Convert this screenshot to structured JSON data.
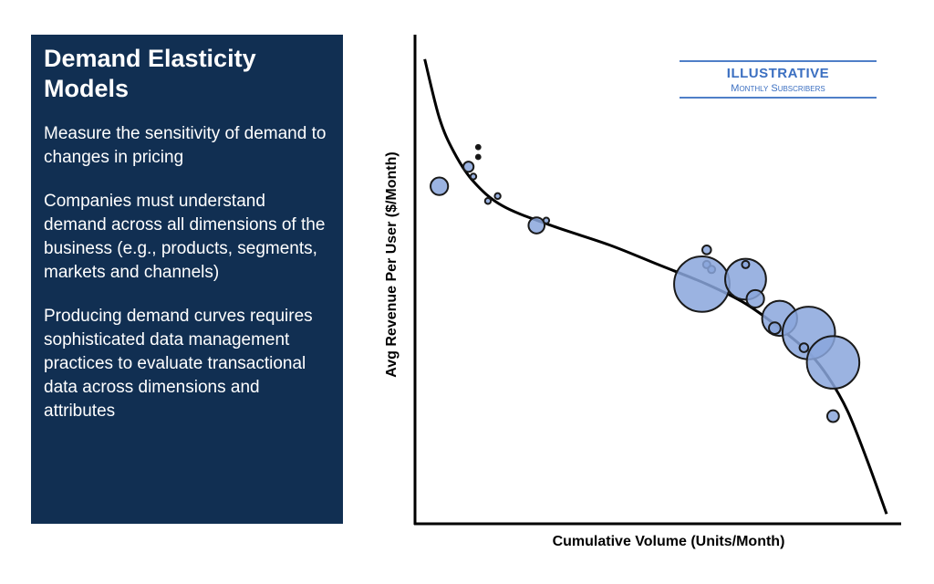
{
  "panel": {
    "title": "Demand Elasticity Models",
    "paragraphs": [
      "Measure the sensitivity of demand to changes in pricing",
      "Companies must understand demand across all dimensions of the business (e.g., products, segments, markets and channels)",
      "Producing demand curves requires sophisticated data management practices to evaluate transactional data across dimensions and attributes"
    ]
  },
  "badge": {
    "title": "ILLUSTRATIVE",
    "subtitle": "Monthly Subscribers"
  },
  "colors": {
    "panel_bg": "#112f52",
    "bubble_fill": "#8aa6dc",
    "bubble_stroke": "#1a1a1a",
    "accent": "#3b6fc1"
  },
  "chart_data": {
    "type": "scatter",
    "title": "",
    "xlabel": "Cumulative Volume (Units/Month)",
    "ylabel": "Avg Revenue Per User ($/Month)",
    "xlim": [
      0,
      100
    ],
    "ylim": [
      0,
      100
    ],
    "grid": false,
    "ticks": false,
    "points": [
      {
        "x": 12,
        "y": 71,
        "size": 2
      },
      {
        "x": 5,
        "y": 69,
        "size": 6
      },
      {
        "x": 13,
        "y": 75,
        "size": 1.5
      },
      {
        "x": 13,
        "y": 77,
        "size": 1.5
      },
      {
        "x": 11,
        "y": 73,
        "size": 3.5
      },
      {
        "x": 15,
        "y": 66,
        "size": 2
      },
      {
        "x": 17,
        "y": 67,
        "size": 2
      },
      {
        "x": 25,
        "y": 61,
        "size": 5.5
      },
      {
        "x": 27,
        "y": 62,
        "size": 2
      },
      {
        "x": 60,
        "y": 56,
        "size": 3
      },
      {
        "x": 60,
        "y": 53,
        "size": 2.5
      },
      {
        "x": 61,
        "y": 52,
        "size": 2.5
      },
      {
        "x": 59,
        "y": 49,
        "size": 19
      },
      {
        "x": 68,
        "y": 50,
        "size": 14
      },
      {
        "x": 68,
        "y": 53,
        "size": 2.5
      },
      {
        "x": 70,
        "y": 46,
        "size": 6
      },
      {
        "x": 75,
        "y": 42,
        "size": 12
      },
      {
        "x": 74,
        "y": 40,
        "size": 4
      },
      {
        "x": 81,
        "y": 39,
        "size": 18
      },
      {
        "x": 80,
        "y": 36,
        "size": 3
      },
      {
        "x": 86,
        "y": 33,
        "size": 18
      },
      {
        "x": 86,
        "y": 22,
        "size": 4
      }
    ],
    "curve": [
      {
        "x": 2,
        "y": 95
      },
      {
        "x": 5,
        "y": 83
      },
      {
        "x": 8,
        "y": 76
      },
      {
        "x": 12,
        "y": 70
      },
      {
        "x": 18,
        "y": 65
      },
      {
        "x": 28,
        "y": 61
      },
      {
        "x": 40,
        "y": 57
      },
      {
        "x": 50,
        "y": 53
      },
      {
        "x": 60,
        "y": 49
      },
      {
        "x": 68,
        "y": 45
      },
      {
        "x": 75,
        "y": 40
      },
      {
        "x": 81,
        "y": 35
      },
      {
        "x": 85,
        "y": 30
      },
      {
        "x": 89,
        "y": 23
      },
      {
        "x": 93,
        "y": 13
      },
      {
        "x": 97,
        "y": 2
      }
    ]
  }
}
